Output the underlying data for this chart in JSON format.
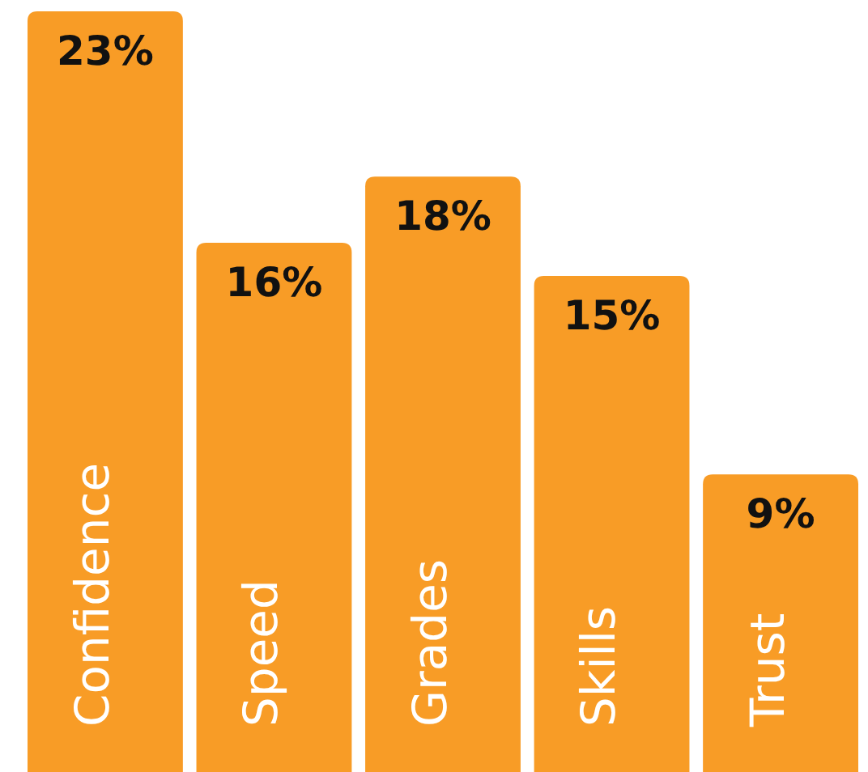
{
  "chart_data": {
    "type": "bar",
    "categories": [
      "Confidence",
      "Speed",
      "Grades",
      "Skills",
      "Trust"
    ],
    "values": [
      23,
      16,
      18,
      15,
      9
    ],
    "value_labels": [
      "23%",
      "16%",
      "18%",
      "15%",
      "9%"
    ],
    "color": "#f89c26"
  }
}
